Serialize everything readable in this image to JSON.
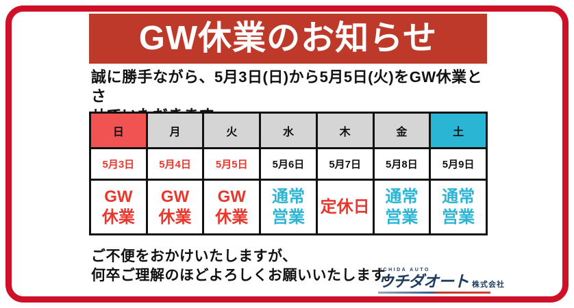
{
  "banner": {
    "title": "GW休業のお知らせ",
    "bg": "#BD3A2B",
    "text_color": "#FFFFFF"
  },
  "intro": {
    "text": "誠に勝手ながら、5月3日(日)から5月5日(火)をGW休業とさ\nせていただきます。"
  },
  "calendar": {
    "day_header": [
      {
        "label": "日",
        "bg": "#F05351"
      },
      {
        "label": "月",
        "bg": "#D5D5D5"
      },
      {
        "label": "火",
        "bg": "#D5D5D5"
      },
      {
        "label": "水",
        "bg": "#D5D5D5"
      },
      {
        "label": "木",
        "bg": "#D5D5D5"
      },
      {
        "label": "金",
        "bg": "#D5D5D5"
      },
      {
        "label": "土",
        "bg": "#2BB5D4"
      }
    ],
    "dates": [
      {
        "label": "5月3日",
        "color": "#E8382D"
      },
      {
        "label": "5月4日",
        "color": "#E8382D"
      },
      {
        "label": "5月5日",
        "color": "#E8382D"
      },
      {
        "label": "5月6日",
        "color": "#111111"
      },
      {
        "label": "5月7日",
        "color": "#111111"
      },
      {
        "label": "5月8日",
        "color": "#111111"
      },
      {
        "label": "5月9日",
        "color": "#111111"
      }
    ],
    "status": [
      {
        "label": "GW\n休業",
        "color": "#E8382D"
      },
      {
        "label": "GW\n休業",
        "color": "#E8382D"
      },
      {
        "label": "GW\n休業",
        "color": "#E8382D"
      },
      {
        "label": "通常\n営業",
        "color": "#2BB5D4"
      },
      {
        "label": "定休日",
        "color": "#E8382D"
      },
      {
        "label": "通常\n営業",
        "color": "#2BB5D4"
      },
      {
        "label": "通常\n営業",
        "color": "#2BB5D4"
      }
    ]
  },
  "closing": {
    "text": "ご不便をおかけいたしますが、\n何卒ご理解のほどよろしくお願いいたします。"
  },
  "logo": {
    "company_en": "UCHIDA AUTO",
    "company_name": "ウチダオート",
    "suffix": "株式会社"
  },
  "colors": {
    "frame_border": "#CE1126",
    "table_border": "#111111",
    "logo_navy": "#1E3C5F"
  }
}
